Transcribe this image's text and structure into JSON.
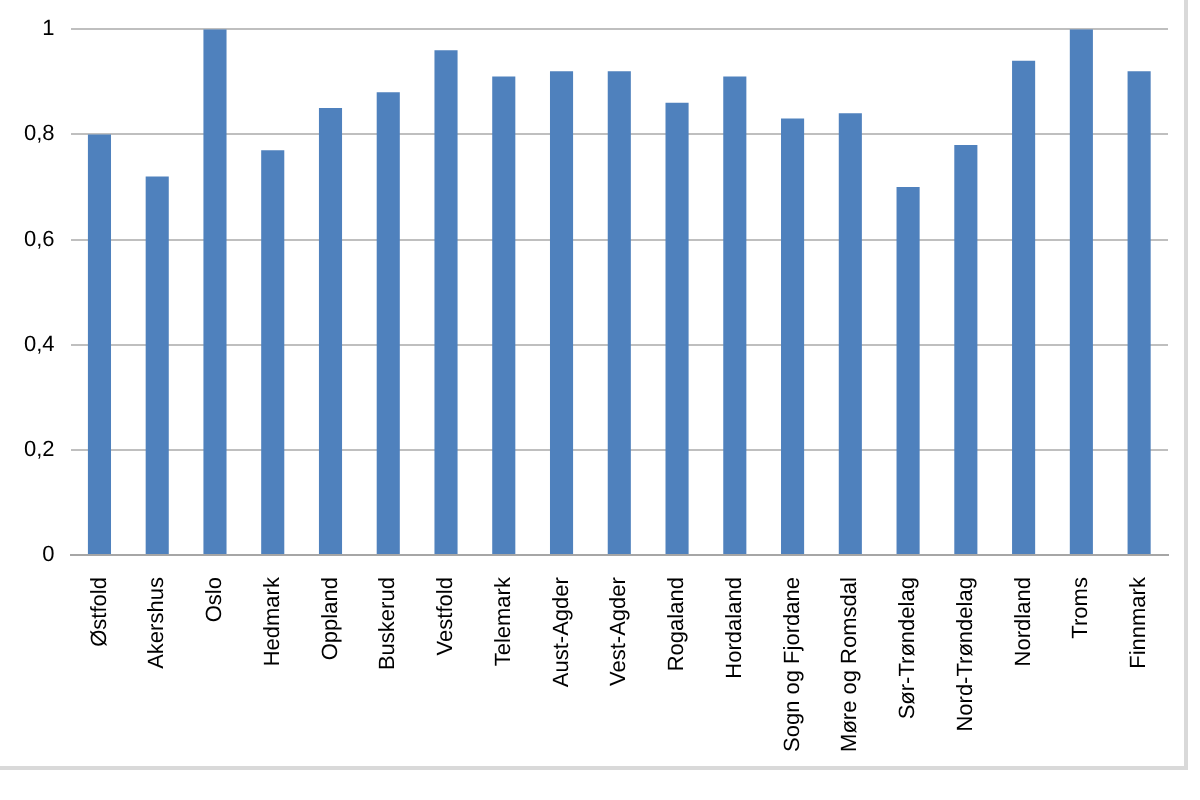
{
  "chart_data": {
    "type": "bar",
    "categories": [
      "Østfold",
      "Akershus",
      "Oslo",
      "Hedmark",
      "Oppland",
      "Buskerud",
      "Vestfold",
      "Telemark",
      "Aust-Agder",
      "Vest-Agder",
      "Rogaland",
      "Hordaland",
      "Sogn og Fjordane",
      "Møre og Romsdal",
      "Sør-Trøndelag",
      "Nord-Trøndelag",
      "Nordland",
      "Troms",
      "Finnmark"
    ],
    "values": [
      0.8,
      0.72,
      1,
      0.77,
      0.85,
      0.88,
      0.96,
      0.91,
      0.92,
      0.92,
      0.86,
      0.91,
      0.83,
      0.84,
      0.7,
      0.78,
      0.94,
      1,
      0.92
    ],
    "color": "#4f81bd",
    "ylim": [
      0,
      1
    ],
    "yticks": [
      0,
      {
        "value": 0.2,
        "label": "0,2"
      },
      {
        "value": 0.4,
        "label": "0,4"
      },
      {
        "value": 0.6,
        "label": "0,6"
      },
      {
        "value": 0.8,
        "label": "0,8"
      },
      1
    ],
    "grid": "y"
  }
}
